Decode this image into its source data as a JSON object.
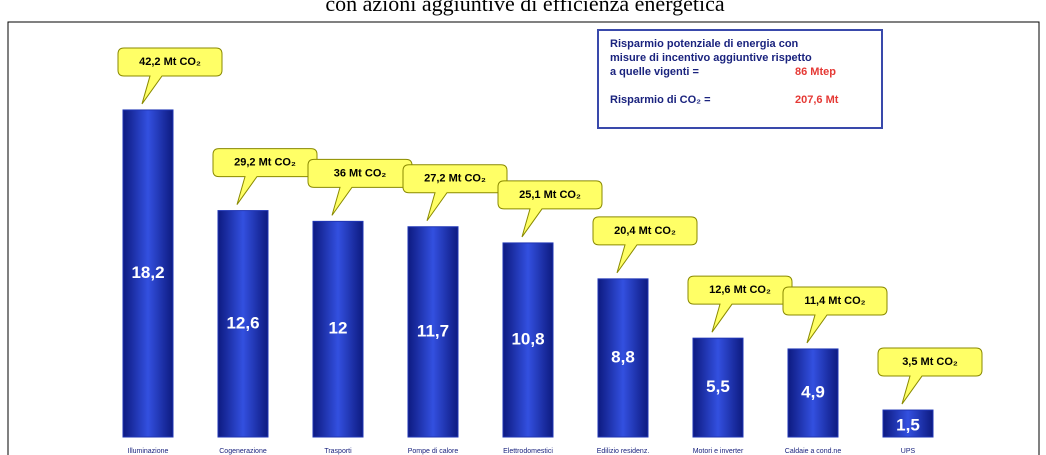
{
  "chart_data": {
    "type": "bar",
    "title": "con azioni aggiuntive di efficienza energetica",
    "categories": [
      "Illuminazione",
      "Cogenerazione",
      "Trasporti",
      "Pompe di calore",
      "Elettrodomestici",
      "Edilizio residenz.",
      "Motori e inverter",
      "Caldaie a cond.ne",
      "UPS"
    ],
    "values": [
      18.2,
      12.6,
      12,
      11.7,
      10.8,
      8.8,
      5.5,
      4.9,
      1.5
    ],
    "value_labels": [
      "18,2",
      "12,6",
      "12",
      "11,7",
      "10,8",
      "8,8",
      "5,5",
      "4,9",
      "1,5"
    ],
    "annotations": [
      "42,2 Mt CO₂",
      "29,2 Mt CO₂",
      "36 Mt CO₂",
      "27,2 Mt CO₂",
      "25,1 Mt CO₂",
      "20,4 Mt CO₂",
      "12,6 Mt CO₂",
      "11,4 Mt CO₂",
      "3,5 Mt CO₂"
    ],
    "color": "#1f35b5",
    "annotation_color": "#ffff66",
    "info_box": {
      "lines": [
        "Risparmio potenziale di energia con",
        "misure di incentivo aggiuntive rispetto",
        "a quelle vigenti ="
      ],
      "energy": "86 Mtep",
      "co2_label": "Risparmio di CO₂ =",
      "co2": "207,6 Mt"
    }
  }
}
